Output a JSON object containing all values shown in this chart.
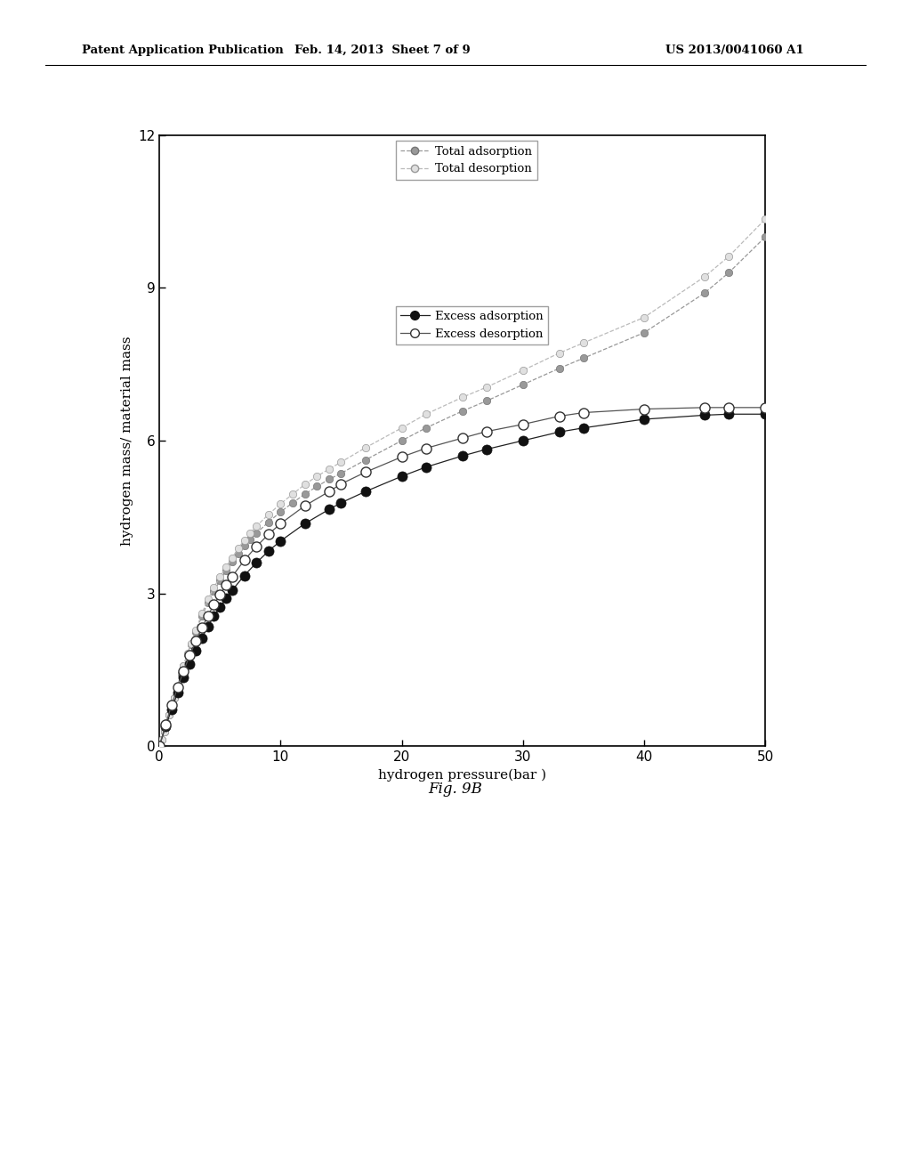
{
  "header_left": "Patent Application Publication",
  "header_mid": "Feb. 14, 2013  Sheet 7 of 9",
  "header_right": "US 2013/0041060 A1",
  "figure_label": "Fig. 9B",
  "xlabel": "hydrogen pressure(bar )",
  "ylabel": "hydrogen mass/ material mass",
  "xlim": [
    0,
    50
  ],
  "ylim": [
    0,
    12
  ],
  "xticks": [
    0,
    10,
    20,
    30,
    40,
    50
  ],
  "yticks": [
    0,
    3,
    6,
    9,
    12
  ],
  "background_color": "#ffffff",
  "total_adsorption": {
    "x": [
      0.0,
      0.2,
      0.4,
      0.6,
      0.8,
      1.0,
      1.2,
      1.5,
      1.8,
      2.0,
      2.3,
      2.6,
      3.0,
      3.5,
      4.0,
      4.5,
      5.0,
      5.5,
      6.0,
      6.5,
      7.0,
      7.5,
      8.0,
      9.0,
      10.0,
      11.0,
      12.0,
      13.0,
      14.0,
      15.0,
      17.0,
      20.0,
      22.0,
      25.0,
      27.0,
      30.0,
      33.0,
      35.0,
      40.0,
      45.0,
      47.0,
      50.0
    ],
    "y": [
      0.0,
      0.12,
      0.28,
      0.45,
      0.62,
      0.78,
      0.95,
      1.18,
      1.42,
      1.58,
      1.8,
      2.0,
      2.25,
      2.55,
      2.82,
      3.05,
      3.25,
      3.45,
      3.62,
      3.78,
      3.93,
      4.06,
      4.18,
      4.4,
      4.6,
      4.78,
      4.95,
      5.1,
      5.24,
      5.36,
      5.62,
      6.0,
      6.25,
      6.58,
      6.78,
      7.1,
      7.42,
      7.62,
      8.12,
      8.9,
      9.3,
      10.0
    ],
    "color": "#888888",
    "marker": "o",
    "marker_size": 6,
    "linestyle": "--",
    "label": "Total adsorption"
  },
  "total_desorption": {
    "x": [
      0.0,
      0.2,
      0.4,
      0.6,
      0.8,
      1.0,
      1.2,
      1.5,
      1.8,
      2.0,
      2.3,
      2.6,
      3.0,
      3.5,
      4.0,
      4.5,
      5.0,
      5.5,
      6.0,
      6.5,
      7.0,
      7.5,
      8.0,
      9.0,
      10.0,
      11.0,
      12.0,
      13.0,
      14.0,
      15.0,
      17.0,
      20.0,
      22.0,
      25.0,
      27.0,
      30.0,
      33.0,
      35.0,
      40.0,
      45.0,
      47.0,
      50.0
    ],
    "y": [
      0.0,
      0.12,
      0.28,
      0.45,
      0.62,
      0.78,
      0.95,
      1.18,
      1.42,
      1.58,
      1.82,
      2.02,
      2.28,
      2.6,
      2.88,
      3.12,
      3.32,
      3.52,
      3.7,
      3.88,
      4.05,
      4.18,
      4.32,
      4.55,
      4.76,
      4.95,
      5.14,
      5.3,
      5.44,
      5.58,
      5.86,
      6.25,
      6.52,
      6.85,
      7.05,
      7.38,
      7.72,
      7.92,
      8.42,
      9.22,
      9.62,
      10.35
    ],
    "color": "#aaaaaa",
    "marker": "o",
    "marker_size": 6,
    "linestyle": "--",
    "label": "Total desorption"
  },
  "excess_adsorption": {
    "x": [
      0.0,
      0.5,
      1.0,
      1.5,
      2.0,
      2.5,
      3.0,
      3.5,
      4.0,
      4.5,
      5.0,
      5.5,
      6.0,
      7.0,
      8.0,
      9.0,
      10.0,
      12.0,
      14.0,
      15.0,
      17.0,
      20.0,
      22.0,
      25.0,
      27.0,
      30.0,
      33.0,
      35.0,
      40.0,
      45.0,
      47.0,
      50.0
    ],
    "y": [
      0.0,
      0.38,
      0.72,
      1.05,
      1.35,
      1.62,
      1.88,
      2.12,
      2.35,
      2.55,
      2.73,
      2.9,
      3.06,
      3.35,
      3.6,
      3.83,
      4.03,
      4.37,
      4.65,
      4.78,
      5.0,
      5.3,
      5.48,
      5.7,
      5.83,
      6.0,
      6.17,
      6.25,
      6.42,
      6.5,
      6.52,
      6.52
    ],
    "color": "#111111",
    "marker": "o",
    "marker_size": 8,
    "linestyle": "-",
    "label": "Excess adsorption",
    "filled": true
  },
  "excess_desorption": {
    "x": [
      0.0,
      0.5,
      1.0,
      1.5,
      2.0,
      2.5,
      3.0,
      3.5,
      4.0,
      4.5,
      5.0,
      5.5,
      6.0,
      7.0,
      8.0,
      9.0,
      10.0,
      12.0,
      14.0,
      15.0,
      17.0,
      20.0,
      22.0,
      25.0,
      27.0,
      30.0,
      33.0,
      35.0,
      40.0,
      45.0,
      47.0,
      50.0
    ],
    "y": [
      0.0,
      0.42,
      0.8,
      1.15,
      1.48,
      1.78,
      2.06,
      2.32,
      2.56,
      2.78,
      2.98,
      3.16,
      3.33,
      3.65,
      3.92,
      4.16,
      4.37,
      4.72,
      5.0,
      5.15,
      5.38,
      5.68,
      5.85,
      6.05,
      6.18,
      6.32,
      6.48,
      6.55,
      6.62,
      6.65,
      6.65,
      6.65
    ],
    "color": "#444444",
    "marker": "o",
    "marker_size": 8,
    "linestyle": "-",
    "label": "Excess desorption",
    "filled": false
  }
}
